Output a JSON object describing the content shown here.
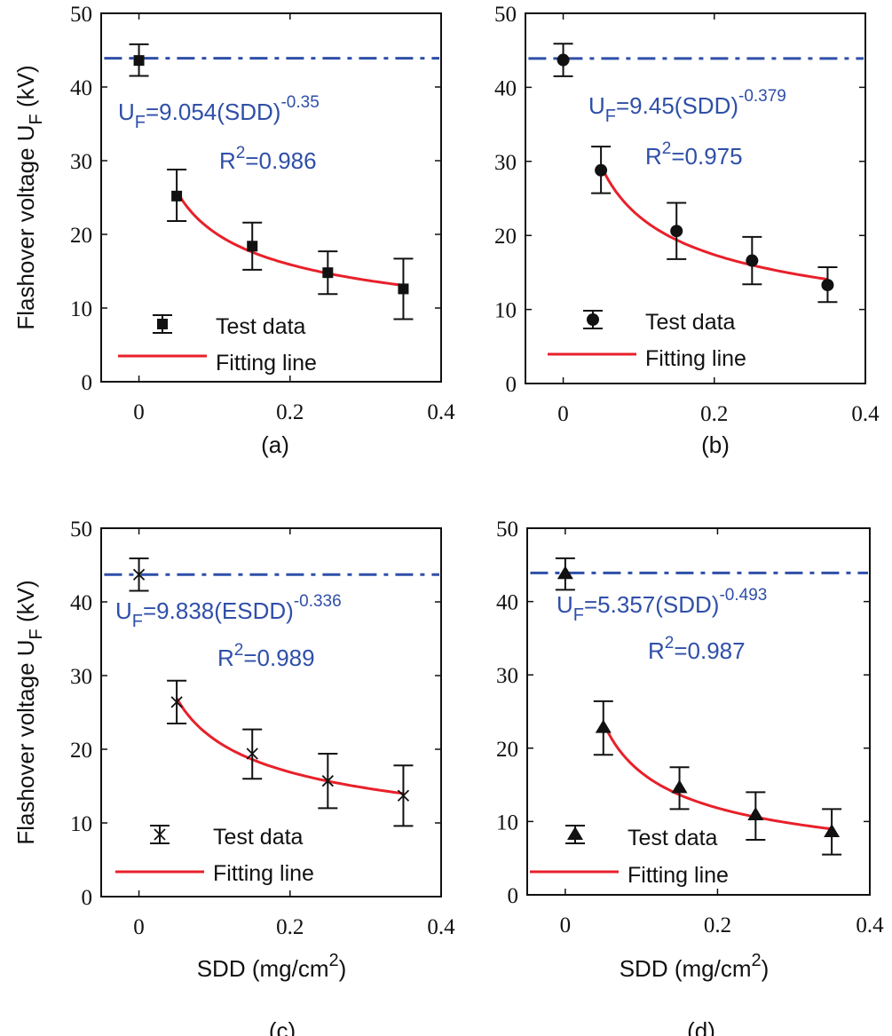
{
  "chart_data": [
    {
      "type": "scatter",
      "caption": "(a)",
      "ylabel": "Flashover voltage U",
      "ylabel_sub": "F",
      "ylabel_unit": " (kV)",
      "xlabel": "",
      "xlim": [
        -0.05,
        0.4
      ],
      "ylim": [
        0,
        50
      ],
      "xticks": [
        "0",
        "0.2",
        "0.4"
      ],
      "xtick_values": [
        0,
        0.2,
        0.4
      ],
      "yticks": [
        "0",
        "10",
        "20",
        "30",
        "40",
        "50"
      ],
      "ytick_values": [
        0,
        10,
        20,
        30,
        40,
        50
      ],
      "marker": "square",
      "points": [
        {
          "x": 0,
          "y": 43.6,
          "low": 41.5,
          "high": 45.8
        },
        {
          "x": 0.05,
          "y": 25.2,
          "low": 21.8,
          "high": 28.8
        },
        {
          "x": 0.15,
          "y": 18.4,
          "low": 15.2,
          "high": 21.6
        },
        {
          "x": 0.25,
          "y": 14.8,
          "low": 11.9,
          "high": 17.7
        },
        {
          "x": 0.35,
          "y": 12.6,
          "low": 8.5,
          "high": 16.7
        }
      ],
      "reference_line": 43.9,
      "fit": {
        "a": 9.054,
        "b": -0.35,
        "x_range": [
          0.05,
          0.35
        ]
      },
      "equation": {
        "lhs": "U",
        "sub": "F",
        "body": "=9.054(SDD)",
        "exp": "-0.35"
      },
      "r2": {
        "prefix": "R",
        "sup": "2",
        "value": "=0.986"
      },
      "legend": [
        "Test data",
        "Fitting line"
      ]
    },
    {
      "type": "scatter",
      "caption": "(b)",
      "xlabel": "",
      "xlim": [
        -0.05,
        0.4
      ],
      "ylim": [
        0,
        50
      ],
      "xticks": [
        "0",
        "0.2",
        "0.4"
      ],
      "xtick_values": [
        0,
        0.2,
        0.4
      ],
      "yticks": [
        "0",
        "10",
        "20",
        "30",
        "40",
        "50"
      ],
      "ytick_values": [
        0,
        10,
        20,
        30,
        40,
        50
      ],
      "marker": "circle",
      "points": [
        {
          "x": 0,
          "y": 43.7,
          "low": 41.5,
          "high": 45.9
        },
        {
          "x": 0.05,
          "y": 28.8,
          "low": 25.7,
          "high": 32.0
        },
        {
          "x": 0.15,
          "y": 20.6,
          "low": 16.8,
          "high": 24.4
        },
        {
          "x": 0.25,
          "y": 16.6,
          "low": 13.4,
          "high": 19.8
        },
        {
          "x": 0.35,
          "y": 13.3,
          "low": 11.0,
          "high": 15.7
        }
      ],
      "reference_line": 43.9,
      "fit": {
        "a": 9.45,
        "b": -0.379,
        "x_range": [
          0.05,
          0.35
        ]
      },
      "equation": {
        "lhs": "U",
        "sub": "F",
        "body": "=9.45(SDD)",
        "exp": "-0.379"
      },
      "r2": {
        "prefix": "R",
        "sup": "2",
        "value": "=0.975"
      },
      "legend": [
        "Test data",
        "Fitting line"
      ]
    },
    {
      "type": "scatter",
      "caption": "(c)",
      "ylabel": "Flashover voltage U",
      "ylabel_sub": "F",
      "ylabel_unit": " (kV)",
      "xlabel": "SDD (mg/cm",
      "xlabel_sup": "2",
      "xlabel_end": ")",
      "xlim": [
        -0.05,
        0.4
      ],
      "ylim": [
        0,
        50
      ],
      "xticks": [
        "0",
        "0.2",
        "0.4"
      ],
      "xtick_values": [
        0,
        0.2,
        0.4
      ],
      "yticks": [
        "0",
        "10",
        "20",
        "30",
        "40",
        "50"
      ],
      "ytick_values": [
        0,
        10,
        20,
        30,
        40,
        50
      ],
      "marker": "cross",
      "points": [
        {
          "x": 0,
          "y": 43.7,
          "low": 41.5,
          "high": 45.9
        },
        {
          "x": 0.05,
          "y": 26.4,
          "low": 23.5,
          "high": 29.3
        },
        {
          "x": 0.15,
          "y": 19.4,
          "low": 16.0,
          "high": 22.7
        },
        {
          "x": 0.25,
          "y": 15.7,
          "low": 12.0,
          "high": 19.4
        },
        {
          "x": 0.35,
          "y": 13.7,
          "low": 9.6,
          "high": 17.8
        }
      ],
      "reference_line": 43.7,
      "fit": {
        "a": 9.838,
        "b": -0.336,
        "x_range": [
          0.05,
          0.35
        ]
      },
      "equation": {
        "lhs": "U",
        "sub": "F",
        "body": "=9.838(ESDD)",
        "exp": "-0.336"
      },
      "r2": {
        "prefix": "R",
        "sup": "2",
        "value": "=0.989"
      },
      "legend": [
        "Test data",
        "Fitting line"
      ]
    },
    {
      "type": "scatter",
      "caption": "(d)",
      "xlabel": "SDD (mg/cm",
      "xlabel_sup": "2",
      "xlabel_end": ")",
      "xlim": [
        -0.05,
        0.4
      ],
      "ylim": [
        0,
        50
      ],
      "xticks": [
        "0",
        "0.2",
        "0.4"
      ],
      "xtick_values": [
        0,
        0.2,
        0.4
      ],
      "yticks": [
        "0",
        "10",
        "20",
        "30",
        "40",
        "50"
      ],
      "ytick_values": [
        0,
        10,
        20,
        30,
        40,
        50
      ],
      "marker": "triangle",
      "points": [
        {
          "x": 0,
          "y": 43.8,
          "low": 41.6,
          "high": 45.9
        },
        {
          "x": 0.05,
          "y": 22.8,
          "low": 19.1,
          "high": 26.4
        },
        {
          "x": 0.15,
          "y": 14.6,
          "low": 11.7,
          "high": 17.4
        },
        {
          "x": 0.25,
          "y": 10.9,
          "low": 7.5,
          "high": 14.0
        },
        {
          "x": 0.35,
          "y": 8.6,
          "low": 5.5,
          "high": 11.7
        }
      ],
      "reference_line": 43.9,
      "fit": {
        "a": 5.357,
        "b": -0.493,
        "x_range": [
          0.05,
          0.35
        ]
      },
      "equation": {
        "lhs": "U",
        "sub": "F",
        "body": "=5.357(SDD)",
        "exp": "-0.493"
      },
      "r2": {
        "prefix": "R",
        "sup": "2",
        "value": "=0.987"
      },
      "legend": [
        "Test data",
        "Fitting line"
      ]
    }
  ],
  "colors": {
    "fit": "#e8202a",
    "reference": "#2f4fa8",
    "equation": "#2f4fa8",
    "markers": "#111111"
  }
}
